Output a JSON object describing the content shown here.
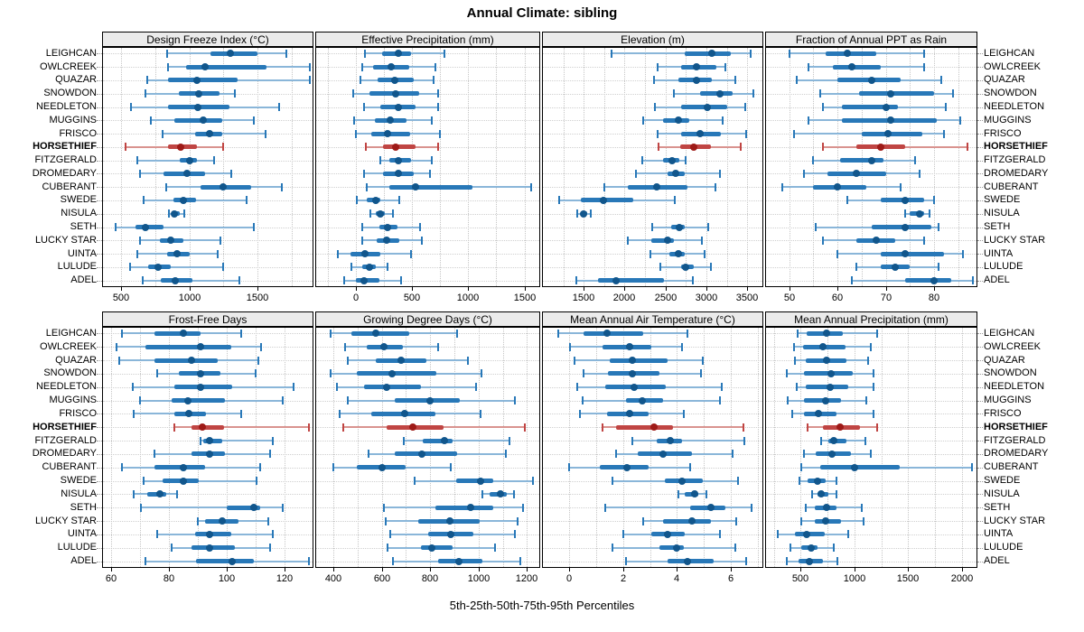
{
  "chart_data": {
    "type": "dotplot-percentiles",
    "title": "Annual Climate: sibling",
    "caption": "5th-25th-50th-75th-95th Percentiles",
    "legend_note": "each row shows 5th, 25th, 50th, 75th, 95th percentile whisker-box-dot",
    "grid": "dotted",
    "highlight_site": "HORSETHIEF",
    "colors": {
      "blue_whisker": "#8ab6d9",
      "blue_box": "#2878b8",
      "blue_dot": "#11568c",
      "red_whisker": "#d9938f",
      "red_box": "#c04543",
      "red_dot": "#9e1a17",
      "strip_bg": "#ebebeb",
      "panel_border": "#000000",
      "grid_line": "#c6c6c6"
    },
    "sites": [
      "LEIGHCAN",
      "OWLCREEK",
      "QUAZAR",
      "SNOWDON",
      "NEEDLETON",
      "MUGGINS",
      "FRISCO",
      "HORSETHIEF",
      "FITZGERALD",
      "DROMEDARY",
      "CUBERANT",
      "SWEDE",
      "NISULA",
      "SETH",
      "LUCKY STAR",
      "UINTA",
      "LULUDE",
      "ADEL"
    ],
    "panels": [
      {
        "title": "Design Freeze Index (°C)",
        "xlim": [
          360,
          1910
        ],
        "ticks": [
          500,
          1000,
          1500
        ],
        "grid_step": 250,
        "values": [
          [
            840,
            1155,
            1300,
            1500,
            1710
          ],
          [
            845,
            975,
            1115,
            1565,
            1885
          ],
          [
            690,
            845,
            1055,
            1355,
            1885
          ],
          [
            675,
            920,
            1070,
            1220,
            1335
          ],
          [
            570,
            845,
            1065,
            1295,
            1660
          ],
          [
            720,
            890,
            1100,
            1240,
            1470
          ],
          [
            805,
            1045,
            1145,
            1240,
            1560
          ],
          [
            530,
            845,
            935,
            1055,
            1250
          ],
          [
            620,
            930,
            1000,
            1055,
            1180
          ],
          [
            640,
            810,
            980,
            1115,
            1310
          ],
          [
            830,
            1080,
            1250,
            1455,
            1675
          ],
          [
            665,
            880,
            955,
            1050,
            1420
          ],
          [
            850,
            870,
            890,
            930,
            965
          ],
          [
            460,
            605,
            680,
            810,
            1470
          ],
          [
            635,
            785,
            865,
            955,
            1225
          ],
          [
            620,
            835,
            910,
            1000,
            1205
          ],
          [
            565,
            700,
            770,
            865,
            1250
          ],
          [
            655,
            790,
            895,
            1025,
            1370
          ]
        ]
      },
      {
        "title": "Effective Precipitation (mm)",
        "xlim": [
          -360,
          1640
        ],
        "ticks": [
          0,
          500,
          1000,
          1500
        ],
        "grid_step": 250,
        "values": [
          [
            80,
            235,
            375,
            495,
            785
          ],
          [
            60,
            155,
            315,
            475,
            710
          ],
          [
            45,
            195,
            350,
            515,
            690
          ],
          [
            -20,
            125,
            355,
            560,
            730
          ],
          [
            75,
            215,
            375,
            535,
            730
          ],
          [
            -15,
            170,
            310,
            455,
            680
          ],
          [
            5,
            140,
            280,
            480,
            750
          ],
          [
            90,
            240,
            355,
            535,
            730
          ],
          [
            215,
            295,
            380,
            495,
            675
          ],
          [
            75,
            240,
            380,
            515,
            660
          ],
          [
            100,
            295,
            535,
            1035,
            1560
          ],
          [
            10,
            95,
            175,
            220,
            390
          ],
          [
            130,
            175,
            215,
            255,
            330
          ],
          [
            55,
            210,
            280,
            375,
            570
          ],
          [
            55,
            190,
            275,
            390,
            590
          ],
          [
            -160,
            -45,
            80,
            215,
            495
          ],
          [
            -35,
            60,
            125,
            180,
            280
          ],
          [
            -105,
            5,
            70,
            210,
            405
          ]
        ]
      },
      {
        "title": "Elevation (m)",
        "xlim": [
          990,
          3695
        ],
        "ticks": [
          1500,
          2000,
          2500,
          3000,
          3500
        ],
        "grid_step": 250,
        "values": [
          [
            1840,
            2730,
            3065,
            3300,
            3545
          ],
          [
            2405,
            2690,
            2880,
            3120,
            3230
          ],
          [
            2360,
            2660,
            2875,
            3065,
            3355
          ],
          [
            2600,
            2920,
            3160,
            3325,
            3570
          ],
          [
            2370,
            2690,
            3005,
            3250,
            3470
          ],
          [
            2230,
            2470,
            2655,
            2790,
            3200
          ],
          [
            2405,
            2690,
            2920,
            3175,
            3490
          ],
          [
            2415,
            2680,
            2845,
            3055,
            3420
          ],
          [
            2220,
            2470,
            2580,
            2670,
            2745
          ],
          [
            2140,
            2530,
            2625,
            2735,
            3160
          ],
          [
            1750,
            2035,
            2395,
            2765,
            3115
          ],
          [
            1200,
            1460,
            1745,
            2105,
            2615
          ],
          [
            1420,
            1460,
            1495,
            1540,
            1585
          ],
          [
            2340,
            2570,
            2670,
            2730,
            3020
          ],
          [
            2035,
            2330,
            2520,
            2605,
            2945
          ],
          [
            2320,
            2545,
            2660,
            2735,
            2975
          ],
          [
            2440,
            2690,
            2745,
            2845,
            3050
          ],
          [
            1410,
            1675,
            1895,
            2485,
            2835
          ]
        ]
      },
      {
        "title": "Fraction of Annual PPT as Rain",
        "xlim": [
          45,
          89
        ],
        "ticks": [
          50,
          60,
          70,
          80
        ],
        "grid_step": 5,
        "values": [
          [
            50,
            57.5,
            62,
            68,
            78
          ],
          [
            54,
            59,
            63,
            69,
            78
          ],
          [
            51.5,
            60,
            67,
            73,
            81.5
          ],
          [
            56.5,
            64.5,
            71,
            80,
            84
          ],
          [
            57,
            61,
            70,
            72.5,
            82.5
          ],
          [
            54,
            61,
            71,
            80.5,
            85.5
          ],
          [
            51,
            65,
            70.5,
            77.5,
            82
          ],
          [
            57,
            64,
            69,
            74,
            87
          ],
          [
            55,
            60.5,
            67,
            69.5,
            76
          ],
          [
            53,
            58,
            64,
            70,
            77
          ],
          [
            48.5,
            55,
            60,
            66,
            73
          ],
          [
            62,
            69,
            74,
            78,
            80
          ],
          [
            74,
            75,
            77,
            78,
            79
          ],
          [
            55.5,
            67,
            74,
            79.5,
            81
          ],
          [
            57,
            64,
            68,
            72,
            78
          ],
          [
            60,
            69,
            74,
            82,
            86
          ],
          [
            64,
            69,
            72,
            75,
            81
          ],
          [
            63,
            74,
            80,
            83.5,
            88
          ]
        ]
      },
      {
        "title": "Frost-Free Days",
        "xlim": [
          57,
          130
        ],
        "ticks": [
          60,
          80,
          100,
          120
        ],
        "grid_step": 10,
        "values": [
          [
            64,
            75,
            85,
            91,
            105
          ],
          [
            62,
            72,
            91,
            101.5,
            112
          ],
          [
            63,
            75,
            88,
            97,
            111
          ],
          [
            76,
            83.5,
            91,
            98,
            110
          ],
          [
            67.5,
            82,
            91,
            102,
            123
          ],
          [
            70,
            81,
            86.5,
            99.5,
            119.5
          ],
          [
            68,
            82,
            87,
            93,
            105
          ],
          [
            82,
            88,
            91.5,
            99,
            128.5
          ],
          [
            91,
            92,
            94,
            98.5,
            116
          ],
          [
            75,
            88,
            94,
            99.5,
            115
          ],
          [
            64,
            75,
            85,
            92.5,
            111.5
          ],
          [
            71.5,
            78,
            85,
            90.5,
            110.5
          ],
          [
            68,
            72.5,
            77,
            79,
            83
          ],
          [
            70.5,
            100,
            109.5,
            111.5,
            119.5
          ],
          [
            90,
            92.5,
            98.5,
            104,
            114.5
          ],
          [
            76,
            89,
            94,
            101.5,
            116
          ],
          [
            81,
            88,
            94,
            103,
            115
          ],
          [
            72,
            89.5,
            102,
            109.5,
            128.5
          ]
        ]
      },
      {
        "title": "Growing Degree Days (°C)",
        "xlim": [
          325,
          1255
        ],
        "ticks": [
          400,
          600,
          800,
          1000,
          1200
        ],
        "grid_step": 100,
        "values": [
          [
            387,
            476,
            574,
            713,
            913
          ],
          [
            450,
            538,
            610,
            687,
            834
          ],
          [
            459,
            577,
            680,
            786,
            956
          ],
          [
            388,
            495,
            643,
            824,
            1011
          ],
          [
            414,
            525,
            619,
            763,
            990
          ],
          [
            460,
            654,
            798,
            923,
            1151
          ],
          [
            426,
            557,
            695,
            820,
            1010
          ],
          [
            439,
            619,
            730,
            854,
            1190
          ],
          [
            691,
            769,
            860,
            893,
            1128
          ],
          [
            547,
            655,
            765,
            913,
            1112
          ],
          [
            400,
            495,
            600,
            700,
            887
          ],
          [
            737,
            906,
            1008,
            1059,
            1226
          ],
          [
            1015,
            1047,
            1089,
            1115,
            1147
          ],
          [
            610,
            821,
            969,
            1059,
            1184
          ],
          [
            617,
            750,
            880,
            1004,
            1161
          ],
          [
            636,
            793,
            884,
            978,
            1151
          ],
          [
            622,
            763,
            806,
            893,
            1069
          ],
          [
            645,
            834,
            917,
            1017,
            1174
          ]
        ]
      },
      {
        "title": "Mean Annual Air Temperature (°C)",
        "xlim": [
          -1.0,
          7.2
        ],
        "ticks": [
          0,
          2,
          4,
          6
        ],
        "grid_step": 1,
        "values": [
          [
            -0.4,
            0.55,
            1.4,
            2.75,
            4.4
          ],
          [
            0.05,
            1.25,
            2.25,
            3.05,
            4.2
          ],
          [
            0.2,
            1.5,
            2.35,
            3.65,
            4.95
          ],
          [
            0.55,
            1.45,
            2.35,
            3.35,
            4.9
          ],
          [
            0.3,
            1.35,
            2.4,
            3.6,
            5.65
          ],
          [
            0.5,
            2.1,
            2.7,
            3.5,
            5.6
          ],
          [
            0.4,
            1.4,
            2.25,
            2.95,
            4.25
          ],
          [
            1.25,
            1.75,
            3.15,
            3.85,
            6.45
          ],
          [
            2.35,
            3.25,
            3.75,
            4.2,
            6.5
          ],
          [
            1.75,
            2.55,
            3.5,
            4.55,
            6.05
          ],
          [
            0.0,
            1.15,
            2.15,
            2.95,
            4.5
          ],
          [
            1.6,
            3.55,
            4.2,
            4.95,
            6.25
          ],
          [
            4.05,
            4.3,
            4.65,
            4.8,
            5.1
          ],
          [
            1.35,
            4.5,
            5.25,
            5.8,
            6.75
          ],
          [
            2.75,
            3.5,
            4.55,
            5.25,
            6.2
          ],
          [
            2.0,
            3.05,
            3.65,
            4.3,
            5.6
          ],
          [
            1.6,
            3.35,
            4.0,
            4.25,
            6.15
          ],
          [
            2.1,
            3.65,
            4.4,
            5.35,
            6.55
          ]
        ]
      },
      {
        "title": "Mean Annual Precipitation (mm)",
        "xlim": [
          170,
          2145
        ],
        "ticks": [
          500,
          1000,
          1500,
          2000
        ],
        "grid_step": 250,
        "values": [
          [
            475,
            555,
            740,
            895,
            1210
          ],
          [
            435,
            520,
            705,
            915,
            1155
          ],
          [
            450,
            550,
            740,
            925,
            1130
          ],
          [
            375,
            530,
            785,
            985,
            1175
          ],
          [
            465,
            550,
            775,
            945,
            1175
          ],
          [
            380,
            530,
            735,
            880,
            1110
          ],
          [
            420,
            535,
            670,
            830,
            1175
          ],
          [
            565,
            705,
            865,
            1050,
            1210
          ],
          [
            690,
            755,
            810,
            930,
            1105
          ],
          [
            535,
            640,
            795,
            965,
            1155
          ],
          [
            505,
            685,
            1000,
            1425,
            2095
          ],
          [
            490,
            565,
            655,
            735,
            830
          ],
          [
            610,
            655,
            695,
            760,
            830
          ],
          [
            550,
            635,
            740,
            835,
            1070
          ],
          [
            505,
            635,
            730,
            875,
            1090
          ],
          [
            290,
            445,
            555,
            725,
            945
          ],
          [
            405,
            510,
            595,
            655,
            805
          ],
          [
            375,
            480,
            580,
            710,
            840
          ]
        ]
      }
    ]
  }
}
